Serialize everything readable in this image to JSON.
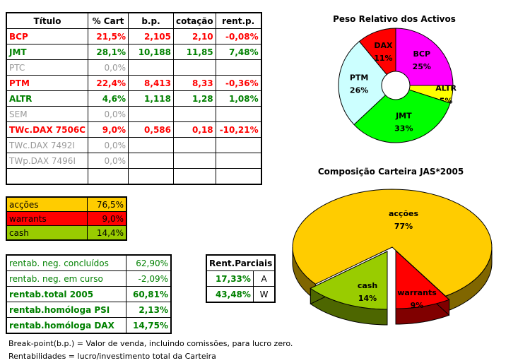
{
  "main_table": {
    "headers": [
      "Título",
      "% Cart",
      "b.p.",
      "cotação",
      "rent.p."
    ],
    "rows": [
      {
        "style": "red",
        "cells": [
          "BCP",
          "21,5%",
          "2,105",
          "2,10",
          "-0,08%"
        ]
      },
      {
        "style": "grn",
        "cells": [
          "JMT",
          "28,1%",
          "10,188",
          "11,85",
          "7,48%"
        ]
      },
      {
        "style": "gry",
        "cells": [
          "PTC",
          "0,0%",
          "",
          "",
          ""
        ]
      },
      {
        "style": "red",
        "cells": [
          "PTM",
          "22,4%",
          "8,413",
          "8,33",
          "-0,36%"
        ]
      },
      {
        "style": "grn",
        "cells": [
          "ALTR",
          "4,6%",
          "1,118",
          "1,28",
          "1,08%"
        ]
      },
      {
        "style": "gry",
        "cells": [
          "SEM",
          "0,0%",
          "",
          "",
          ""
        ]
      },
      {
        "style": "red",
        "cells": [
          "TWc.DAX 7506C",
          "9,0%",
          "0,586",
          "0,18",
          "-10,21%"
        ]
      },
      {
        "style": "gry",
        "cells": [
          "TWc.DAX 7492I",
          "0,0%",
          "",
          "",
          ""
        ]
      },
      {
        "style": "gry",
        "cells": [
          "TWp.DAX 7496I",
          "0,0%",
          "",
          "",
          ""
        ]
      },
      {
        "style": "",
        "cells": [
          "",
          "",
          "",
          "",
          ""
        ]
      }
    ]
  },
  "allocation": [
    {
      "label": "acções",
      "value": "76,5%",
      "color": "#ffcc00"
    },
    {
      "label": "warrants",
      "value": "9,0%",
      "color": "#ff0000"
    },
    {
      "label": "cash",
      "value": "14,4%",
      "color": "#99cc00"
    }
  ],
  "rentab": [
    {
      "label": "rentab. neg. concluídos",
      "value": "62,90%",
      "bold": false
    },
    {
      "label": "rentab. neg. em curso",
      "value": "-2,09%",
      "bold": false
    },
    {
      "label": "rentab.total 2005",
      "value": "60,81%",
      "bold": true
    },
    {
      "label": "rentab.homóloga PSI",
      "value": "2,13%",
      "bold": true
    },
    {
      "label": "rentab.homóloga DAX",
      "value": "14,75%",
      "bold": true
    }
  ],
  "parciais": {
    "title": "Rent.Parciais",
    "rows": [
      [
        "17,33%",
        "A"
      ],
      [
        "43,48%",
        "W"
      ]
    ]
  },
  "notes": [
    "Break-point(b.p.) = Valor de venda, incluindo comissões, para lucro zero.",
    "Rentabilidades = lucro/investimento total da Carteira"
  ],
  "chart_data": [
    {
      "type": "pie",
      "variant": "doughnut",
      "title": "Peso Relativo dos Activos",
      "categories": [
        "BCP",
        "ALTR",
        "JMT",
        "PTM",
        "DAX"
      ],
      "values": [
        25,
        5,
        33,
        26,
        11
      ],
      "labels": [
        "25%",
        "5%",
        "33%",
        "26%",
        "11%"
      ],
      "colors": [
        "#ff00ff",
        "#ffff00",
        "#00ff00",
        "#ccffff",
        "#ff0000"
      ]
    },
    {
      "type": "pie",
      "variant": "3d-exploded",
      "title": "Composição Carteira JAS*2005",
      "categories": [
        "acções",
        "warrants",
        "cash"
      ],
      "values": [
        77,
        9,
        14
      ],
      "labels": [
        "77%",
        "9%",
        "14%"
      ],
      "colors": [
        "#ffcc00",
        "#ff0000",
        "#99cc00"
      ],
      "side_colors": [
        "#806600",
        "#800000",
        "#4d6600"
      ]
    }
  ]
}
